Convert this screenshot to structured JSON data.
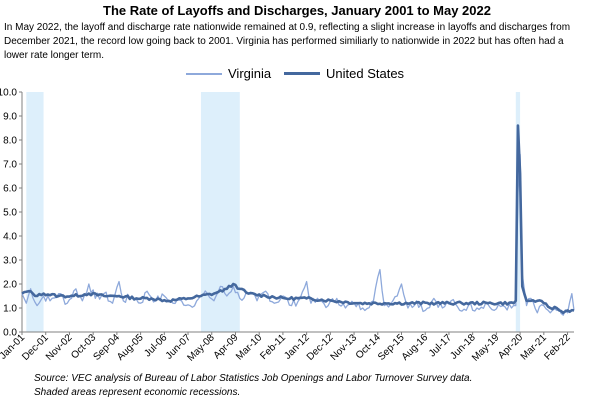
{
  "chart_data": {
    "type": "line",
    "title": "The Rate of Layoffs and Discharges, January 2001 to May 2022",
    "subtitle": "In May 2022, the layoff and discharge rate nationwide remained at 0.9, reflecting a slight increase in layoffs and discharges from December 2021, the record low going back to 2001. Virginia has performed similiarly to nationwide in 2022 but has often had a lower rate longer term.",
    "source": [
      "Source: VEC analysis of Bureau of Labor Statistics Job Openings and Labor Turnover Survey data.",
      "Shaded areas represent economic recessions."
    ],
    "ylim": [
      0,
      10
    ],
    "yticks": [
      "0.0",
      "1.0",
      "2.0",
      "3.0",
      "4.0",
      "5.0",
      "6.0",
      "7.0",
      "8.0",
      "9.0",
      "10.0"
    ],
    "grid": false,
    "legend_position": "top-center",
    "x_tick_labels": [
      "Jan-01",
      "Dec-01",
      "Nov-02",
      "Oct-03",
      "Sep-04",
      "Aug-05",
      "Jul-06",
      "Jun-07",
      "May-08",
      "Apr-09",
      "Mar-10",
      "Feb-11",
      "Jan-12",
      "Dec-12",
      "Nov-13",
      "Oct-14",
      "Sep-15",
      "Aug-16",
      "Jul-17",
      "Jun-18",
      "May-19",
      "Apr-20",
      "Mar-21",
      "Feb-22"
    ],
    "x_start": "2001-01",
    "recessions": [
      {
        "start": "2001-03",
        "end": "2001-11"
      },
      {
        "start": "2007-12",
        "end": "2009-06"
      },
      {
        "start": "2020-02",
        "end": "2020-04"
      }
    ],
    "series": [
      {
        "name": "Virginia",
        "color": "#8ea9db",
        "anchors": [
          [
            "2001-01",
            1.6
          ],
          [
            "2001-03",
            1.2
          ],
          [
            "2001-05",
            1.8
          ],
          [
            "2001-08",
            1.1
          ],
          [
            "2001-11",
            1.5
          ],
          [
            "2002-02",
            1.3
          ],
          [
            "2002-06",
            1.6
          ],
          [
            "2002-10",
            1.2
          ],
          [
            "2003-02",
            1.8
          ],
          [
            "2003-05",
            1.3
          ],
          [
            "2003-08",
            2.0
          ],
          [
            "2003-11",
            1.4
          ],
          [
            "2004-03",
            1.6
          ],
          [
            "2004-07",
            1.2
          ],
          [
            "2004-10",
            2.1
          ],
          [
            "2004-12",
            1.3
          ],
          [
            "2005-04",
            1.5
          ],
          [
            "2005-08",
            1.2
          ],
          [
            "2005-11",
            1.7
          ],
          [
            "2006-03",
            1.3
          ],
          [
            "2006-07",
            1.5
          ],
          [
            "2006-11",
            1.2
          ],
          [
            "2007-03",
            1.3
          ],
          [
            "2007-07",
            1.1
          ],
          [
            "2007-11",
            1.4
          ],
          [
            "2008-03",
            1.6
          ],
          [
            "2008-06",
            1.3
          ],
          [
            "2008-09",
            1.9
          ],
          [
            "2008-12",
            1.5
          ],
          [
            "2009-03",
            1.9
          ],
          [
            "2009-06",
            1.4
          ],
          [
            "2009-10",
            1.6
          ],
          [
            "2010-02",
            1.3
          ],
          [
            "2010-06",
            1.7
          ],
          [
            "2010-10",
            1.2
          ],
          [
            "2011-02",
            1.5
          ],
          [
            "2011-06",
            1.1
          ],
          [
            "2011-10",
            1.4
          ],
          [
            "2012-01",
            2.1
          ],
          [
            "2012-03",
            1.2
          ],
          [
            "2012-07",
            1.3
          ],
          [
            "2012-11",
            1.1
          ],
          [
            "2013-03",
            1.4
          ],
          [
            "2013-07",
            1.0
          ],
          [
            "2013-11",
            1.2
          ],
          [
            "2014-03",
            1.0
          ],
          [
            "2014-08",
            1.3
          ],
          [
            "2014-11",
            2.6
          ],
          [
            "2015-01",
            1.1
          ],
          [
            "2015-05",
            1.3
          ],
          [
            "2015-09",
            2.0
          ],
          [
            "2015-12",
            1.0
          ],
          [
            "2016-04",
            1.3
          ],
          [
            "2016-08",
            0.9
          ],
          [
            "2016-12",
            1.4
          ],
          [
            "2017-04",
            1.0
          ],
          [
            "2017-08",
            1.3
          ],
          [
            "2017-12",
            0.9
          ],
          [
            "2018-04",
            1.1
          ],
          [
            "2018-08",
            1.0
          ],
          [
            "2018-12",
            1.2
          ],
          [
            "2019-04",
            0.9
          ],
          [
            "2019-08",
            1.1
          ],
          [
            "2019-12",
            1.0
          ],
          [
            "2020-02",
            1.1
          ],
          [
            "2020-03",
            5.8
          ],
          [
            "2020-04",
            7.4
          ],
          [
            "2020-05",
            2.4
          ],
          [
            "2020-07",
            1.1
          ],
          [
            "2020-09",
            1.4
          ],
          [
            "2020-12",
            0.8
          ],
          [
            "2021-03",
            1.1
          ],
          [
            "2021-06",
            0.8
          ],
          [
            "2021-09",
            0.9
          ],
          [
            "2021-12",
            0.7
          ],
          [
            "2022-02",
            0.8
          ],
          [
            "2022-04",
            1.6
          ],
          [
            "2022-05",
            0.9
          ]
        ]
      },
      {
        "name": "United States",
        "color": "#44689e",
        "anchors": [
          [
            "2001-01",
            1.6
          ],
          [
            "2001-04",
            1.7
          ],
          [
            "2001-08",
            1.5
          ],
          [
            "2001-11",
            1.6
          ],
          [
            "2002-06",
            1.5
          ],
          [
            "2003-01",
            1.5
          ],
          [
            "2003-08",
            1.6
          ],
          [
            "2004-03",
            1.5
          ],
          [
            "2004-10",
            1.5
          ],
          [
            "2005-06",
            1.4
          ],
          [
            "2006-01",
            1.4
          ],
          [
            "2006-09",
            1.3
          ],
          [
            "2007-06",
            1.4
          ],
          [
            "2007-12",
            1.5
          ],
          [
            "2008-06",
            1.6
          ],
          [
            "2008-12",
            1.8
          ],
          [
            "2009-03",
            2.0
          ],
          [
            "2009-06",
            1.8
          ],
          [
            "2009-10",
            1.6
          ],
          [
            "2010-06",
            1.5
          ],
          [
            "2011-03",
            1.4
          ],
          [
            "2012-01",
            1.4
          ],
          [
            "2013-01",
            1.3
          ],
          [
            "2014-01",
            1.2
          ],
          [
            "2015-01",
            1.2
          ],
          [
            "2016-01",
            1.2
          ],
          [
            "2017-01",
            1.2
          ],
          [
            "2018-01",
            1.2
          ],
          [
            "2019-01",
            1.2
          ],
          [
            "2020-01",
            1.2
          ],
          [
            "2020-02",
            1.3
          ],
          [
            "2020-03",
            8.6
          ],
          [
            "2020-04",
            6.6
          ],
          [
            "2020-05",
            1.9
          ],
          [
            "2020-07",
            1.3
          ],
          [
            "2020-09",
            1.3
          ],
          [
            "2020-12",
            1.3
          ],
          [
            "2021-03",
            1.2
          ],
          [
            "2021-06",
            1.0
          ],
          [
            "2021-09",
            1.0
          ],
          [
            "2021-12",
            0.8
          ],
          [
            "2022-02",
            0.9
          ],
          [
            "2022-05",
            0.9
          ]
        ]
      }
    ]
  }
}
